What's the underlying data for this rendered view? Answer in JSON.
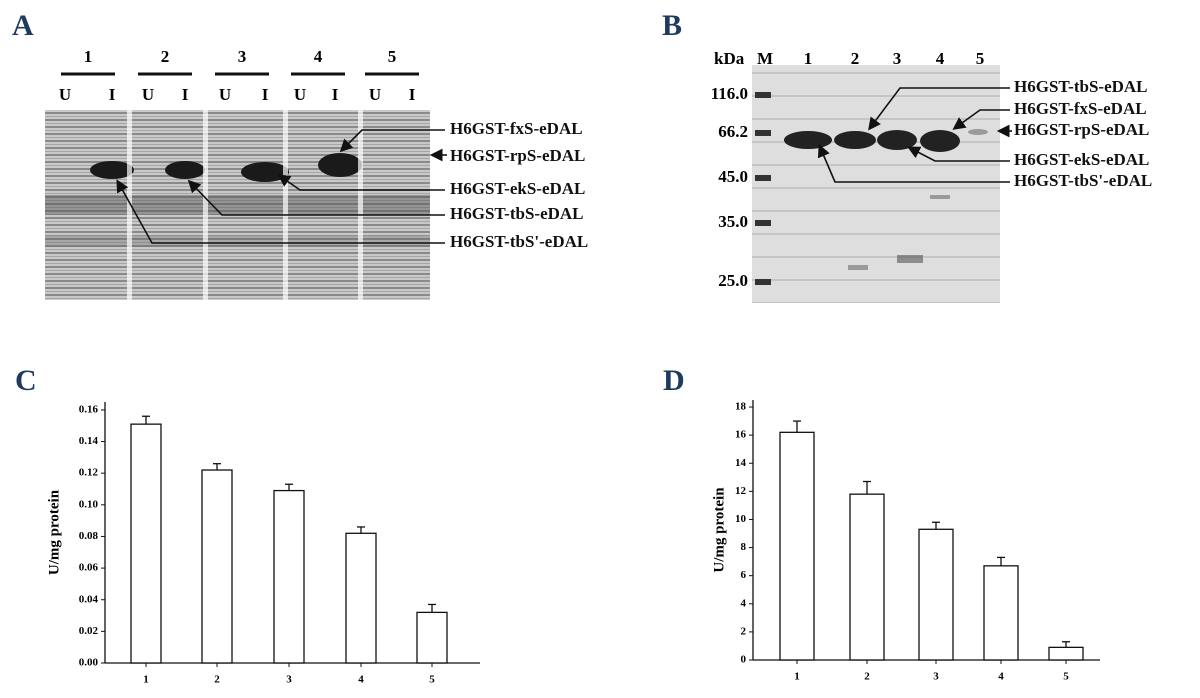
{
  "gel_a": {
    "panel_label": "A",
    "lanes": [
      "1",
      "2",
      "3",
      "4",
      "5"
    ],
    "sublanes": [
      "U",
      "I",
      "U",
      "I",
      "U",
      "I",
      "U",
      "I",
      "U",
      "I"
    ],
    "annotations": [
      "H6GST-fxS-eDAL",
      "H6GST-rpS-eDAL",
      "H6GST-ekS-eDAL",
      "H6GST-tbS-eDAL",
      "H6GST-tbS'-eDAL"
    ]
  },
  "gel_b": {
    "panel_label": "B",
    "unit": "kDa",
    "marker_lane": "M",
    "lanes": [
      "1",
      "2",
      "3",
      "4",
      "5"
    ],
    "markers": [
      "116.0",
      "66.2",
      "45.0",
      "35.0",
      "25.0"
    ],
    "annotations": [
      "H6GST-tbS-eDAL",
      "H6GST-fxS-eDAL",
      "H6GST-rpS-eDAL",
      "H6GST-ekS-eDAL",
      "H6GST-tbS'-eDAL"
    ]
  },
  "chart_data": [
    {
      "type": "bar",
      "panel_label": "C",
      "y_label": "U/mg protein",
      "categories": [
        "1",
        "2",
        "3",
        "4",
        "5"
      ],
      "values": [
        0.151,
        0.122,
        0.109,
        0.082,
        0.032
      ],
      "errors": [
        0.005,
        0.004,
        0.004,
        0.004,
        0.005
      ],
      "color": "#ffffff",
      "ylim": [
        0,
        0.165
      ],
      "yticks": [
        {
          "value": 0,
          "label": "0.00"
        },
        {
          "value": 0.02,
          "label": "0.02"
        },
        {
          "value": 0.04,
          "label": "0.04"
        },
        {
          "value": 0.06,
          "label": "0.06"
        },
        {
          "value": 0.08,
          "label": "0.08"
        },
        {
          "value": 0.1,
          "label": "0.10"
        },
        {
          "value": 0.12,
          "label": "0.12"
        },
        {
          "value": 0.14,
          "label": "0.14"
        },
        {
          "value": 0.16,
          "label": "0.16"
        }
      ]
    },
    {
      "type": "bar",
      "panel_label": "D",
      "y_label": "U/mg protein",
      "categories": [
        "1",
        "2",
        "3",
        "4",
        "5"
      ],
      "values": [
        16.2,
        11.8,
        9.3,
        6.7,
        0.9
      ],
      "errors": [
        0.8,
        0.9,
        0.5,
        0.6,
        0.4
      ],
      "color": "#ffffff",
      "ylim": [
        0,
        18.5
      ],
      "yticks": [
        0,
        2,
        4,
        6,
        8,
        10,
        12,
        14,
        16,
        18
      ]
    }
  ]
}
